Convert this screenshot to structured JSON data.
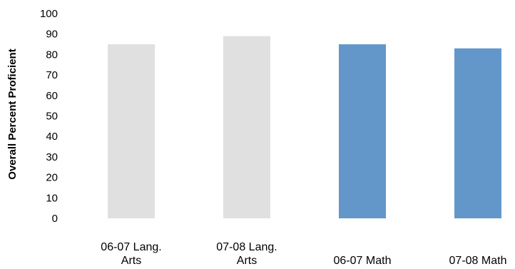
{
  "chart_data": {
    "type": "bar",
    "title": "",
    "xlabel": "",
    "ylabel": "Overall Percent Proficient",
    "ylim": [
      0,
      100
    ],
    "yticks": [
      0,
      10,
      20,
      30,
      40,
      50,
      60,
      70,
      80,
      90,
      100
    ],
    "grid": false,
    "legend": "none",
    "categories": [
      [
        "06-07 Lang.",
        "Arts"
      ],
      [
        "07-08 Lang.",
        "Arts"
      ],
      [
        "06-07 Math"
      ],
      [
        "07-08 Math"
      ]
    ],
    "values": [
      85,
      89,
      85,
      83
    ],
    "colors": [
      "#e0e0e0",
      "#e0e0e0",
      "#6497c9",
      "#6497c9"
    ]
  }
}
